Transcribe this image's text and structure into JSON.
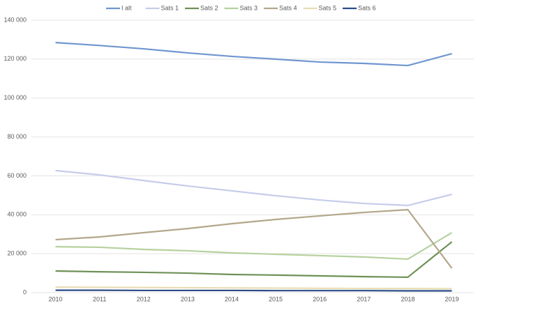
{
  "chart_data": {
    "type": "line",
    "categories": [
      "2010",
      "2011",
      "2012",
      "2013",
      "2014",
      "2015",
      "2016",
      "2017",
      "2018",
      "2019"
    ],
    "series": [
      {
        "name": "I alt",
        "color": "#6f96d0",
        "values": [
          128500,
          127000,
          125300,
          123200,
          121400,
          120000,
          118500,
          117800,
          116700,
          122800
        ]
      },
      {
        "name": "Sats 1",
        "color": "#c5cde9",
        "values": [
          62700,
          60500,
          57600,
          54800,
          52300,
          49800,
          47600,
          45800,
          44800,
          50500
        ]
      },
      {
        "name": "Sats 2",
        "color": "#6e9156",
        "values": [
          11100,
          10700,
          10400,
          10000,
          9300,
          9000,
          8600,
          8200,
          7900,
          26100
        ]
      },
      {
        "name": "Sats 3",
        "color": "#b6d19f",
        "values": [
          23600,
          23300,
          22200,
          21500,
          20400,
          19700,
          19000,
          18300,
          17200,
          30800
        ]
      },
      {
        "name": "Sats 4",
        "color": "#b3a78a",
        "values": [
          27200,
          28600,
          30800,
          32900,
          35400,
          37600,
          39400,
          41200,
          42600,
          12500
        ]
      },
      {
        "name": "Sats 5",
        "color": "#e8dcb2",
        "values": [
          2800,
          2700,
          2600,
          2500,
          2400,
          2300,
          2200,
          2100,
          2100,
          2000
        ]
      },
      {
        "name": "Sats 6",
        "color": "#2b4b86",
        "values": [
          1200,
          1200,
          1100,
          1100,
          1100,
          1000,
          1000,
          1000,
          900,
          900
        ]
      }
    ],
    "ylim": [
      0,
      140000
    ],
    "yticks": [
      0,
      {
        "value": 20000,
        "label": "20 000"
      },
      {
        "value": 40000,
        "label": "40 000"
      },
      {
        "value": 60000,
        "label": "60 000"
      },
      {
        "value": 80000,
        "label": "80 000"
      },
      {
        "value": 100000,
        "label": "100 000"
      },
      {
        "value": 120000,
        "label": "120 000"
      },
      {
        "value": 140000,
        "label": "140 000"
      }
    ],
    "grid": true,
    "legend": "top"
  }
}
